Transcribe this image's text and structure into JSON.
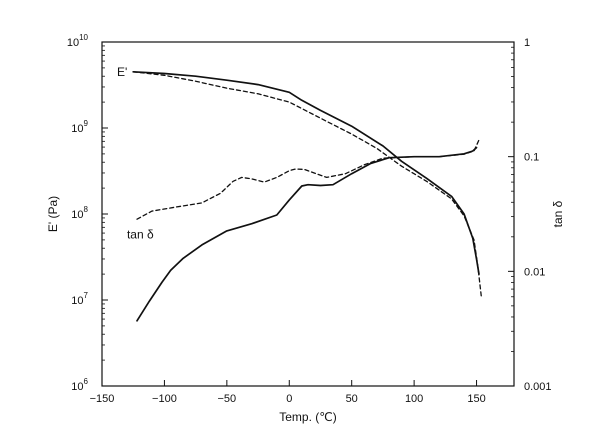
{
  "chart_data": {
    "type": "line",
    "xlabel": "Temp. (℃)",
    "ylabel_left": "E' (Pa)",
    "ylabel_right": "tan δ",
    "xlim": [
      -150,
      180
    ],
    "ylim_left": [
      1000000,
      10000000000
    ],
    "ylim_right": [
      0.001,
      1
    ],
    "y_scale": "log",
    "grid": false,
    "x_ticks": [
      {
        "value": -150,
        "label": "−150"
      },
      {
        "value": -100,
        "label": "−100"
      },
      {
        "value": -50,
        "label": "−50"
      },
      {
        "value": 0,
        "label": "0"
      },
      {
        "value": 50,
        "label": "50"
      },
      {
        "value": 100,
        "label": "100"
      },
      {
        "value": 150,
        "label": "150"
      }
    ],
    "left_ticks": [
      {
        "value": 1000000,
        "base": "10",
        "exp": "6"
      },
      {
        "value": 10000000,
        "base": "10",
        "exp": "7"
      },
      {
        "value": 100000000,
        "base": "10",
        "exp": "8"
      },
      {
        "value": 1000000000,
        "base": "10",
        "exp": "9"
      },
      {
        "value": 10000000000,
        "base": "10",
        "exp": "10"
      }
    ],
    "right_ticks": [
      {
        "value": 0.001,
        "label": "0.001"
      },
      {
        "value": 0.01,
        "label": "0.01"
      },
      {
        "value": 0.1,
        "label": "0.1"
      },
      {
        "value": 1,
        "label": "1"
      }
    ],
    "annotations": [
      {
        "text": "E'",
        "x": -138,
        "y": 4500000000,
        "axis": "left"
      },
      {
        "text": "tan δ",
        "x": -130,
        "y": 0.021,
        "axis": "right"
      }
    ],
    "series": [
      {
        "axis": "left",
        "style": "solid",
        "points": [
          [
            -125,
            4500000000.0
          ],
          [
            -100,
            4300000000.0
          ],
          [
            -75,
            4000000000.0
          ],
          [
            -50,
            3600000000.0
          ],
          [
            -25,
            3200000000.0
          ],
          [
            0,
            2600000000.0
          ],
          [
            10,
            2100000000.0
          ],
          [
            25,
            1600000000.0
          ],
          [
            50,
            1050000000.0
          ],
          [
            75,
            620000000.0
          ],
          [
            90,
            410000000.0
          ],
          [
            110,
            260000000.0
          ],
          [
            130,
            160000000.0
          ],
          [
            140,
            100000000.0
          ],
          [
            147,
            52000000.0
          ],
          [
            150,
            30000000.0
          ],
          [
            152,
            20000000.0
          ]
        ]
      },
      {
        "axis": "left",
        "style": "dashed",
        "points": [
          [
            -125,
            4500000000.0
          ],
          [
            -100,
            4100000000.0
          ],
          [
            -75,
            3500000000.0
          ],
          [
            -50,
            2900000000.0
          ],
          [
            -25,
            2500000000.0
          ],
          [
            0,
            2000000000.0
          ],
          [
            25,
            1300000000.0
          ],
          [
            50,
            850000000.0
          ],
          [
            70,
            580000000.0
          ],
          [
            90,
            360000000.0
          ],
          [
            110,
            240000000.0
          ],
          [
            130,
            150000000.0
          ],
          [
            140,
            95000000.0
          ],
          [
            148,
            50000000.0
          ],
          [
            151,
            25000000.0
          ],
          [
            154,
            10500000.0
          ]
        ]
      },
      {
        "axis": "right",
        "style": "solid",
        "points": [
          [
            -122,
            0.0037
          ],
          [
            -112,
            0.0055
          ],
          [
            -102,
            0.008
          ],
          [
            -95,
            0.0102
          ],
          [
            -85,
            0.013
          ],
          [
            -70,
            0.017
          ],
          [
            -50,
            0.0225
          ],
          [
            -30,
            0.026
          ],
          [
            -10,
            0.031
          ],
          [
            0,
            0.042
          ],
          [
            10,
            0.0555
          ],
          [
            15,
            0.057
          ],
          [
            25,
            0.056
          ],
          [
            35,
            0.057
          ],
          [
            50,
            0.071
          ],
          [
            65,
            0.087
          ],
          [
            80,
            0.098
          ],
          [
            100,
            0.1
          ],
          [
            120,
            0.1
          ],
          [
            140,
            0.106
          ],
          [
            147,
            0.112
          ],
          [
            150,
            0.12
          ]
        ]
      },
      {
        "axis": "right",
        "style": "dashed",
        "points": [
          [
            -122,
            0.0285
          ],
          [
            -110,
            0.0335
          ],
          [
            -90,
            0.0365
          ],
          [
            -70,
            0.0395
          ],
          [
            -55,
            0.048
          ],
          [
            -45,
            0.061
          ],
          [
            -38,
            0.066
          ],
          [
            -30,
            0.064
          ],
          [
            -20,
            0.06
          ],
          [
            -10,
            0.066
          ],
          [
            0,
            0.0755
          ],
          [
            5,
            0.078
          ],
          [
            12,
            0.0775
          ],
          [
            20,
            0.072
          ],
          [
            30,
            0.066
          ],
          [
            45,
            0.071
          ],
          [
            60,
            0.085
          ],
          [
            75,
            0.097
          ],
          [
            100,
            0.1
          ],
          [
            120,
            0.1
          ],
          [
            140,
            0.105
          ],
          [
            148,
            0.112
          ],
          [
            152,
            0.14
          ]
        ]
      }
    ]
  }
}
